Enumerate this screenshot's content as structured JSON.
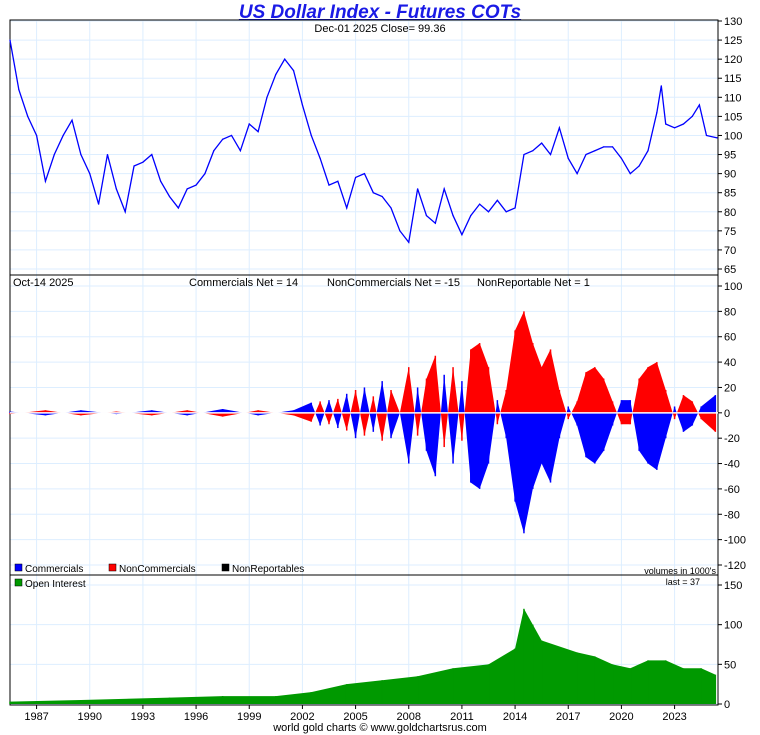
{
  "title": "US Dollar Index - Futures COTs",
  "footer": "world gold charts © www.goldchartsrus.com",
  "colors": {
    "price": "#0000ff",
    "commercials": "#0000ff",
    "noncommercials": "#ff0000",
    "nonreportables": "#000000",
    "open_interest": "#009900",
    "grid": "#ddeeff"
  },
  "chart_data": [
    {
      "type": "line",
      "name": "price",
      "header": "Dec-01  2025   Close= 99.36",
      "ylim": [
        65,
        130
      ],
      "yticks": [
        65,
        70,
        75,
        80,
        85,
        90,
        95,
        100,
        105,
        110,
        115,
        120,
        125,
        130
      ],
      "x": [
        1986,
        1986.5,
        1987,
        1987.5,
        1988,
        1988.5,
        1989,
        1989.5,
        1990,
        1990.5,
        1991,
        1991.5,
        1992,
        1992.5,
        1993,
        1993.5,
        1994,
        1994.5,
        1995,
        1995.5,
        1996,
        1996.5,
        1997,
        1997.5,
        1998,
        1998.5,
        1999,
        1999.5,
        2000,
        2000.5,
        2001,
        2001.5,
        2002,
        2002.5,
        2003,
        2003.5,
        2004,
        2004.5,
        2005,
        2005.5,
        2006,
        2006.5,
        2007,
        2007.5,
        2008,
        2008.5,
        2009,
        2009.5,
        2010,
        2010.5,
        2011,
        2011.5,
        2012,
        2012.5,
        2013,
        2013.5,
        2014,
        2014.5,
        2015,
        2015.5,
        2016,
        2016.5,
        2017,
        2017.5,
        2018,
        2018.5,
        2019,
        2019.5,
        2020,
        2020.5,
        2021,
        2021.5,
        2022,
        2022.5,
        2022.75,
        2023,
        2023.5,
        2024,
        2024.5,
        2024.9,
        2025.3,
        2025.9
      ],
      "y": [
        125,
        112,
        105,
        100,
        88,
        95,
        100,
        104,
        95,
        90,
        82,
        95,
        86,
        80,
        92,
        93,
        95,
        88,
        84,
        81,
        86,
        87,
        90,
        96,
        99,
        100,
        96,
        103,
        101,
        110,
        116,
        120,
        117,
        108,
        100,
        94,
        87,
        88,
        81,
        89,
        90,
        85,
        84,
        81,
        75,
        72,
        86,
        79,
        77,
        86,
        79,
        74,
        79,
        82,
        80,
        83,
        80,
        81,
        95,
        96,
        98,
        95,
        102,
        94,
        90,
        95,
        96,
        97,
        97,
        94,
        90,
        92,
        96,
        106,
        113,
        103,
        102,
        103,
        105,
        108,
        100,
        99.36
      ]
    },
    {
      "type": "area",
      "name": "cot",
      "header_date": "Oct-14  2025",
      "labels": {
        "commercials_net": "Commercials Net = 14",
        "noncommercials_net": "NonCommercials Net = -15",
        "nonreportable_net": "NonReportable Net = 1"
      },
      "ylim": [
        -120,
        100
      ],
      "yticks": [
        -120,
        -100,
        -80,
        -60,
        -40,
        -20,
        0,
        20,
        40,
        60,
        80,
        100
      ],
      "legend": [
        "Commercials",
        "NonCommercials",
        "NonReportables"
      ],
      "note": "volumes in 1000's",
      "x": [
        1986,
        1988,
        1990,
        1992,
        1994,
        1996,
        1998,
        2000,
        2002,
        2003,
        2003.5,
        2004,
        2004.5,
        2005,
        2005.5,
        2006,
        2006.5,
        2007,
        2007.5,
        2008,
        2008.5,
        2009,
        2009.5,
        2010,
        2010.5,
        2011,
        2011.5,
        2012,
        2012.5,
        2013,
        2013.5,
        2014,
        2014.5,
        2015,
        2015.5,
        2016,
        2016.5,
        2017,
        2017.5,
        2018,
        2018.5,
        2019,
        2019.5,
        2020,
        2020.5,
        2021,
        2021.5,
        2022,
        2022.5,
        2023,
        2023.5,
        2024,
        2024.5,
        2025,
        2025.8
      ],
      "commercials": [
        1,
        -2,
        2,
        -1,
        2,
        -2,
        3,
        -2,
        2,
        8,
        -10,
        10,
        -12,
        15,
        -20,
        20,
        -15,
        25,
        -20,
        0,
        -40,
        20,
        -30,
        -50,
        30,
        -40,
        25,
        -55,
        -60,
        -40,
        10,
        -20,
        -70,
        -95,
        -60,
        -40,
        -55,
        -20,
        5,
        -10,
        -35,
        -40,
        -30,
        -10,
        10,
        10,
        -30,
        -40,
        -45,
        -20,
        5,
        -15,
        -10,
        5,
        14
      ],
      "noncommercials": [
        -1,
        2,
        -2,
        1,
        -2,
        2,
        -3,
        2,
        -2,
        -7,
        9,
        -9,
        11,
        -14,
        18,
        -18,
        13,
        -22,
        18,
        0,
        36,
        -18,
        27,
        45,
        -27,
        36,
        -22,
        50,
        55,
        36,
        -9,
        18,
        65,
        80,
        55,
        36,
        50,
        18,
        -5,
        9,
        32,
        36,
        27,
        9,
        -9,
        -9,
        27,
        36,
        40,
        18,
        -5,
        14,
        9,
        -5,
        -15
      ]
    },
    {
      "type": "area",
      "name": "open_interest",
      "legend": "Open Interest",
      "last_label": "last = 37",
      "ylim": [
        0,
        150
      ],
      "yticks": [
        0,
        50,
        100,
        150
      ],
      "xticks": [
        1987,
        1990,
        1993,
        1996,
        1999,
        2002,
        2005,
        2008,
        2011,
        2014,
        2017,
        2020,
        2023
      ],
      "x": [
        1986,
        1990,
        1995,
        1998,
        2001,
        2003,
        2005,
        2007,
        2009,
        2011,
        2013,
        2014.5,
        2015,
        2015.5,
        2016,
        2018,
        2019,
        2020,
        2021,
        2022,
        2023,
        2024,
        2025,
        2025.8
      ],
      "y": [
        3,
        5,
        8,
        10,
        10,
        15,
        25,
        30,
        35,
        45,
        50,
        70,
        120,
        100,
        80,
        65,
        60,
        50,
        45,
        55,
        55,
        45,
        45,
        37
      ]
    }
  ]
}
